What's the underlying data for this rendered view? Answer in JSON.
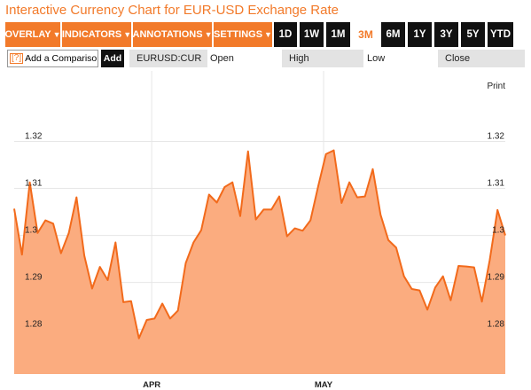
{
  "page": {
    "title": "Interactive Currency Chart for EUR-USD Exchange Rate"
  },
  "toolbar": {
    "menus": [
      {
        "label": "OVERLAY"
      },
      {
        "label": "INDICATORS"
      },
      {
        "label": "ANNOTATIONS"
      },
      {
        "label": "SETTINGS"
      }
    ],
    "ranges": [
      {
        "label": "1D"
      },
      {
        "label": "1W"
      },
      {
        "label": "1M"
      },
      {
        "label": "3M"
      },
      {
        "label": "6M"
      },
      {
        "label": "1Y"
      },
      {
        "label": "3Y"
      },
      {
        "label": "5Y"
      },
      {
        "label": "YTD"
      }
    ],
    "active_range": "3M",
    "accent_color": "#f27a2a",
    "caret_icon": "caret-down-icon"
  },
  "compare": {
    "help_glyph": "[?]",
    "label": "Add a Comparison",
    "add_label": "Add"
  },
  "quote": {
    "symbol": "EURUSD:CUR",
    "open_label": "Open",
    "high_label": "High",
    "low_label": "Low",
    "close_label": "Close"
  },
  "chart": {
    "print_label": "Print"
  },
  "chart_data": {
    "type": "area",
    "title": "",
    "xlabel": "",
    "ylabel": "",
    "x_tick_labels": [
      "APR",
      "MAY"
    ],
    "y_ticks": [
      1.28,
      1.29,
      1.3,
      1.31,
      1.32
    ],
    "y_tick_labels": [
      "1.28",
      "1.29",
      "1.3",
      "1.31",
      "1.32"
    ],
    "ylim": [
      1.2705,
      1.335
    ],
    "grid": true,
    "fill_color": "#fbac7f",
    "line_color": "#f26a1b",
    "series": [
      {
        "values": [
          1.3057,
          1.2959,
          1.3113,
          1.3005,
          1.3032,
          1.3025,
          1.2962,
          1.3005,
          1.3081,
          1.2957,
          1.2887,
          1.2933,
          1.2905,
          1.2985,
          1.2858,
          1.286,
          1.2781,
          1.282,
          1.2823,
          1.2855,
          1.2823,
          1.284,
          1.2941,
          1.2985,
          1.3011,
          1.3087,
          1.307,
          1.3103,
          1.3113,
          1.3041,
          1.3179,
          1.3034,
          1.3055,
          1.3055,
          1.3083,
          1.2998,
          1.3015,
          1.301,
          1.3032,
          1.3105,
          1.3173,
          1.3181,
          1.3069,
          1.3113,
          1.3081,
          1.3083,
          1.3141,
          1.3044,
          1.299,
          1.2974,
          1.2913,
          1.2886,
          1.2883,
          1.2842,
          1.2889,
          1.2913,
          1.2862,
          1.2935,
          1.2934,
          1.2932,
          1.2859,
          1.2947,
          1.3054,
          1.3
        ]
      }
    ],
    "x_tick_positions": [
      0.28,
      0.63
    ]
  }
}
